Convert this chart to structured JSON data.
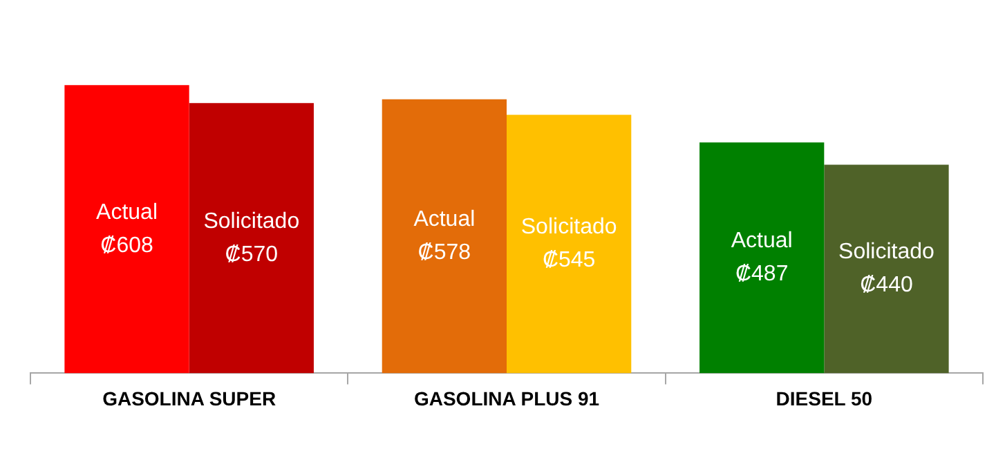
{
  "chart_data": {
    "type": "bar",
    "categories": [
      "GASOLINA SUPER",
      "GASOLINA PLUS 91",
      "DIESEL 50"
    ],
    "series": [
      {
        "name": "Actual",
        "colors": [
          "#ff0000",
          "#e36c09",
          "#008000"
        ],
        "values": [
          608,
          578,
          487
        ],
        "value_labels": [
          "₡608",
          "₡578",
          "₡487"
        ]
      },
      {
        "name": "Solicitado",
        "colors": [
          "#c00000",
          "#ffc000",
          "#4f6228"
        ],
        "values": [
          570,
          545,
          440
        ],
        "value_labels": [
          "₡570",
          "₡545",
          "₡440"
        ]
      }
    ],
    "tick_labels": "x",
    "grid": false,
    "legend": false
  }
}
